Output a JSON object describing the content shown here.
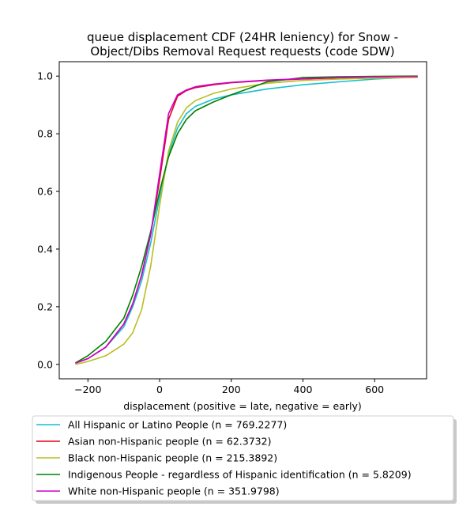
{
  "chart_data": {
    "type": "line",
    "title_lines": [
      "queue displacement CDF (24HR leniency) for Snow -",
      "Object/Dibs Removal Request  requests (code SDW)"
    ],
    "xlabel": "displacement (positive = late, negative = early)",
    "ylabel": "",
    "xlim": [
      -280,
      745
    ],
    "ylim": [
      -0.05,
      1.05
    ],
    "xticks": [
      -200,
      0,
      200,
      400,
      600
    ],
    "yticks": [
      0.0,
      0.2,
      0.4,
      0.6,
      0.8,
      1.0
    ],
    "xtick_labels": [
      "−200",
      "0",
      "200",
      "400",
      "600"
    ],
    "ytick_labels": [
      "0.0",
      "0.2",
      "0.4",
      "0.6",
      "0.8",
      "1.0"
    ],
    "grid": false,
    "legend_position": "below plot",
    "series": [
      {
        "name": "All Hispanic or Latino People (n = 769.2277)",
        "color": "#17becf",
        "x": [
          -235,
          -200,
          -150,
          -100,
          -75,
          -50,
          -25,
          0,
          25,
          50,
          75,
          100,
          150,
          200,
          300,
          400,
          500,
          600,
          720
        ],
        "y": [
          0.005,
          0.02,
          0.06,
          0.13,
          0.2,
          0.29,
          0.42,
          0.58,
          0.73,
          0.82,
          0.87,
          0.895,
          0.92,
          0.935,
          0.955,
          0.97,
          0.98,
          0.99,
          0.997
        ]
      },
      {
        "name": "Asian non-Hispanic people (n = 62.3732)",
        "color": "#e8001c",
        "x": [
          -235,
          -200,
          -150,
          -100,
          -75,
          -50,
          -25,
          0,
          25,
          50,
          75,
          100,
          150,
          200,
          300,
          400,
          500,
          600,
          720
        ],
        "y": [
          0.004,
          0.02,
          0.06,
          0.14,
          0.21,
          0.31,
          0.45,
          0.64,
          0.85,
          0.93,
          0.95,
          0.96,
          0.97,
          0.977,
          0.985,
          0.99,
          0.994,
          0.997,
          0.998
        ]
      },
      {
        "name": "Black non-Hispanic people (n = 215.3892)",
        "color": "#bcbd22",
        "x": [
          -235,
          -200,
          -150,
          -100,
          -75,
          -50,
          -25,
          0,
          25,
          50,
          75,
          100,
          150,
          200,
          300,
          400,
          500,
          600,
          720
        ],
        "y": [
          0.0,
          0.01,
          0.03,
          0.07,
          0.11,
          0.19,
          0.34,
          0.55,
          0.74,
          0.84,
          0.89,
          0.915,
          0.94,
          0.955,
          0.975,
          0.985,
          0.99,
          0.993,
          0.995
        ]
      },
      {
        "name": "Indigenous People - regardless of Hispanic identification (n = 5.8209)",
        "color": "#008000",
        "x": [
          -235,
          -200,
          -150,
          -100,
          -75,
          -50,
          -25,
          0,
          25,
          50,
          75,
          100,
          150,
          200,
          300,
          400,
          500,
          600,
          720
        ],
        "y": [
          0.005,
          0.03,
          0.08,
          0.16,
          0.24,
          0.34,
          0.46,
          0.6,
          0.72,
          0.8,
          0.85,
          0.88,
          0.91,
          0.935,
          0.98,
          0.995,
          0.998,
          0.999,
          1.0
        ]
      },
      {
        "name": "White non-Hispanic people (n = 351.9798)",
        "color": "#cc00cc",
        "x": [
          -235,
          -200,
          -150,
          -100,
          -75,
          -50,
          -25,
          0,
          25,
          50,
          75,
          100,
          150,
          200,
          300,
          400,
          500,
          600,
          720
        ],
        "y": [
          0.004,
          0.02,
          0.06,
          0.14,
          0.21,
          0.31,
          0.45,
          0.66,
          0.87,
          0.935,
          0.952,
          0.963,
          0.972,
          0.978,
          0.986,
          0.991,
          0.995,
          0.998,
          0.999
        ]
      }
    ]
  }
}
